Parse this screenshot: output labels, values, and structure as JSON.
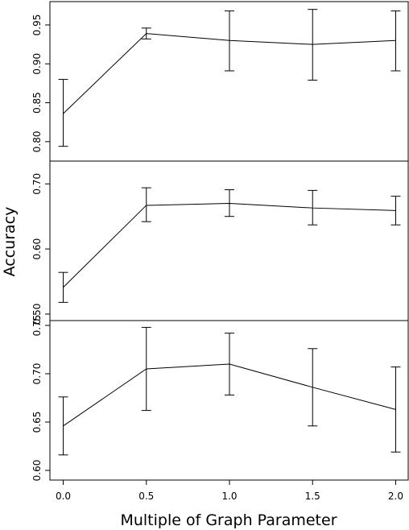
{
  "chart_data": {
    "type": "line",
    "xlabel": "Multiple of Graph Parameter",
    "ylabel": "Accuracy",
    "x": [
      0.0,
      0.5,
      1.0,
      1.5,
      2.0
    ],
    "x_tick_labels": [
      "0.0",
      "0.5",
      "1.0",
      "1.5",
      "2.0"
    ],
    "xlim": [
      -0.08,
      2.08
    ],
    "panels": [
      {
        "ylim": [
          0.775,
          0.98
        ],
        "y_ticks": [
          0.8,
          0.85,
          0.9,
          0.95
        ],
        "y_tick_labels": [
          "0.80",
          "0.85",
          "0.90",
          "0.95"
        ],
        "values": [
          0.836,
          0.939,
          0.93,
          0.925,
          0.93
        ],
        "lower": [
          0.794,
          0.932,
          0.891,
          0.879,
          0.891
        ],
        "upper": [
          0.88,
          0.946,
          0.968,
          0.97,
          0.968
        ]
      },
      {
        "ylim": [
          0.49,
          0.735
        ],
        "y_ticks": [
          0.5,
          0.6,
          0.7
        ],
        "y_tick_labels": [
          "0.50",
          "0.60",
          "0.70"
        ],
        "values": [
          0.541,
          0.667,
          0.67,
          0.663,
          0.659
        ],
        "lower": [
          0.518,
          0.642,
          0.65,
          0.637,
          0.637
        ],
        "upper": [
          0.564,
          0.694,
          0.691,
          0.69,
          0.681
        ]
      },
      {
        "ylim": [
          0.59,
          0.755
        ],
        "y_ticks": [
          0.6,
          0.65,
          0.7,
          0.75
        ],
        "y_tick_labels": [
          "0.60",
          "0.65",
          "0.70",
          "0.75"
        ],
        "values": [
          0.646,
          0.705,
          0.71,
          0.686,
          0.663
        ],
        "lower": [
          0.616,
          0.662,
          0.678,
          0.646,
          0.619
        ],
        "upper": [
          0.676,
          0.748,
          0.742,
          0.726,
          0.707
        ]
      }
    ]
  }
}
